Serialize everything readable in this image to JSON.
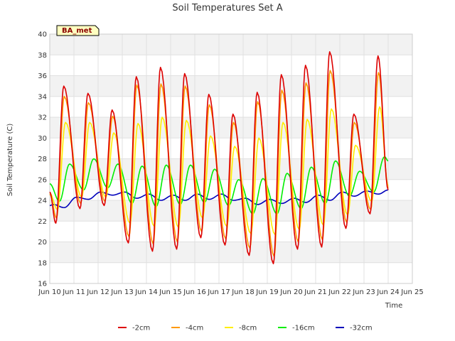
{
  "chart_data": {
    "type": "line",
    "title": "Soil Temperatures Set A",
    "xlabel": "Time",
    "ylabel": "Soil Temperature (C)",
    "badge": "BA_met",
    "xlim": [
      10,
      25
    ],
    "ylim": [
      16,
      40
    ],
    "x_ticks": [
      {
        "v": 10,
        "label": "Jun 10"
      },
      {
        "v": 11,
        "label": "Jun 11"
      },
      {
        "v": 12,
        "label": "Jun 12"
      },
      {
        "v": 13,
        "label": "Jun 13"
      },
      {
        "v": 14,
        "label": "Jun 14"
      },
      {
        "v": 15,
        "label": "Jun 15"
      },
      {
        "v": 16,
        "label": "Jun 16"
      },
      {
        "v": 17,
        "label": "Jun 17"
      },
      {
        "v": 18,
        "label": "Jun 18"
      },
      {
        "v": 19,
        "label": "Jun 19"
      },
      {
        "v": 20,
        "label": "Jun 20"
      },
      {
        "v": 21,
        "label": "Jun 21"
      },
      {
        "v": 22,
        "label": "Jun 22"
      },
      {
        "v": 23,
        "label": "Jun 23"
      },
      {
        "v": 24,
        "label": "Jun 24"
      },
      {
        "v": 25,
        "label": "Jun 25"
      }
    ],
    "y_ticks": [
      16,
      18,
      20,
      22,
      24,
      26,
      28,
      30,
      32,
      34,
      36,
      38,
      40
    ],
    "legend_position": "bottom",
    "series": [
      {
        "name": "-2cm",
        "color": "#dd0000",
        "points": [
          [
            10.0,
            24.8
          ],
          [
            10.25,
            21.8
          ],
          [
            10.58,
            35.0
          ],
          [
            11.25,
            23.2
          ],
          [
            11.58,
            34.3
          ],
          [
            12.25,
            23.5
          ],
          [
            12.58,
            32.7
          ],
          [
            13.25,
            19.9
          ],
          [
            13.58,
            35.9
          ],
          [
            14.25,
            19.1
          ],
          [
            14.58,
            36.8
          ],
          [
            15.25,
            19.3
          ],
          [
            15.58,
            36.2
          ],
          [
            16.25,
            20.4
          ],
          [
            16.58,
            34.2
          ],
          [
            17.25,
            19.7
          ],
          [
            17.58,
            32.3
          ],
          [
            18.25,
            18.7
          ],
          [
            18.58,
            34.4
          ],
          [
            19.25,
            17.9
          ],
          [
            19.58,
            36.1
          ],
          [
            20.25,
            19.3
          ],
          [
            20.58,
            37.0
          ],
          [
            21.25,
            19.5
          ],
          [
            21.58,
            38.3
          ],
          [
            22.25,
            21.3
          ],
          [
            22.58,
            32.3
          ],
          [
            23.25,
            22.7
          ],
          [
            23.58,
            37.9
          ],
          [
            24.0,
            25.0
          ]
        ]
      },
      {
        "name": "-4cm",
        "color": "#ff9900",
        "points": [
          [
            10.0,
            24.6
          ],
          [
            10.28,
            22.3
          ],
          [
            10.6,
            34.0
          ],
          [
            11.28,
            23.7
          ],
          [
            11.6,
            33.4
          ],
          [
            12.28,
            23.9
          ],
          [
            12.6,
            32.1
          ],
          [
            13.28,
            20.5
          ],
          [
            13.6,
            35.1
          ],
          [
            14.28,
            19.8
          ],
          [
            14.6,
            35.2
          ],
          [
            15.28,
            20.0
          ],
          [
            15.6,
            35.0
          ],
          [
            16.28,
            21.0
          ],
          [
            16.6,
            33.2
          ],
          [
            17.28,
            20.3
          ],
          [
            17.6,
            31.5
          ],
          [
            18.28,
            19.4
          ],
          [
            18.6,
            33.5
          ],
          [
            19.28,
            18.6
          ],
          [
            19.6,
            34.6
          ],
          [
            20.28,
            20.0
          ],
          [
            20.6,
            35.3
          ],
          [
            21.28,
            20.2
          ],
          [
            21.6,
            36.5
          ],
          [
            22.28,
            21.9
          ],
          [
            22.6,
            31.5
          ],
          [
            23.28,
            23.1
          ],
          [
            23.6,
            36.3
          ],
          [
            24.0,
            25.2
          ]
        ]
      },
      {
        "name": "-8cm",
        "color": "#ffee00",
        "points": [
          [
            10.0,
            24.7
          ],
          [
            10.32,
            23.1
          ],
          [
            10.65,
            31.5
          ],
          [
            11.32,
            24.3
          ],
          [
            11.65,
            31.5
          ],
          [
            12.32,
            24.3
          ],
          [
            12.65,
            30.5
          ],
          [
            13.32,
            21.8
          ],
          [
            13.65,
            31.4
          ],
          [
            14.32,
            21.5
          ],
          [
            14.65,
            32.0
          ],
          [
            15.32,
            21.4
          ],
          [
            15.65,
            31.7
          ],
          [
            16.32,
            22.3
          ],
          [
            16.65,
            30.2
          ],
          [
            17.32,
            21.5
          ],
          [
            17.65,
            29.2
          ],
          [
            18.32,
            20.8
          ],
          [
            18.65,
            30.0
          ],
          [
            19.32,
            20.7
          ],
          [
            19.65,
            31.5
          ],
          [
            20.32,
            21.2
          ],
          [
            20.65,
            31.8
          ],
          [
            21.32,
            21.6
          ],
          [
            21.65,
            32.8
          ],
          [
            22.32,
            22.6
          ],
          [
            22.65,
            29.3
          ],
          [
            23.32,
            23.9
          ],
          [
            23.65,
            33.0
          ],
          [
            24.0,
            25.4
          ]
        ]
      },
      {
        "name": "-16cm",
        "color": "#00ee00",
        "points": [
          [
            10.0,
            25.6
          ],
          [
            10.4,
            23.9
          ],
          [
            10.82,
            27.5
          ],
          [
            11.4,
            25.0
          ],
          [
            11.82,
            28.0
          ],
          [
            12.4,
            25.2
          ],
          [
            12.82,
            27.5
          ],
          [
            13.4,
            23.7
          ],
          [
            13.82,
            27.3
          ],
          [
            14.4,
            23.4
          ],
          [
            14.82,
            27.4
          ],
          [
            15.4,
            23.6
          ],
          [
            15.82,
            27.4
          ],
          [
            16.4,
            23.8
          ],
          [
            16.82,
            27.0
          ],
          [
            17.4,
            23.5
          ],
          [
            17.82,
            26.0
          ],
          [
            18.4,
            22.7
          ],
          [
            18.82,
            26.1
          ],
          [
            19.4,
            22.7
          ],
          [
            19.82,
            26.6
          ],
          [
            20.4,
            23.2
          ],
          [
            20.82,
            27.2
          ],
          [
            21.4,
            23.7
          ],
          [
            21.82,
            27.8
          ],
          [
            22.4,
            24.4
          ],
          [
            22.82,
            26.8
          ],
          [
            23.4,
            24.8
          ],
          [
            23.85,
            28.2
          ],
          [
            24.0,
            27.8
          ]
        ]
      },
      {
        "name": "-32cm",
        "color": "#0000bb",
        "points": [
          [
            10.0,
            23.5
          ],
          [
            10.15,
            23.6
          ],
          [
            10.6,
            23.3
          ],
          [
            11.1,
            24.3
          ],
          [
            11.6,
            24.1
          ],
          [
            12.1,
            24.8
          ],
          [
            12.6,
            24.5
          ],
          [
            13.1,
            24.8
          ],
          [
            13.6,
            24.2
          ],
          [
            14.1,
            24.6
          ],
          [
            14.6,
            24.0
          ],
          [
            15.1,
            24.5
          ],
          [
            15.6,
            24.0
          ],
          [
            16.1,
            24.6
          ],
          [
            16.6,
            24.1
          ],
          [
            17.1,
            24.6
          ],
          [
            17.6,
            24.0
          ],
          [
            18.1,
            24.2
          ],
          [
            18.6,
            23.6
          ],
          [
            19.1,
            24.1
          ],
          [
            19.6,
            23.7
          ],
          [
            20.1,
            24.2
          ],
          [
            20.6,
            23.8
          ],
          [
            21.1,
            24.5
          ],
          [
            21.6,
            24.0
          ],
          [
            22.1,
            24.8
          ],
          [
            22.6,
            24.4
          ],
          [
            23.1,
            24.9
          ],
          [
            23.6,
            24.6
          ],
          [
            24.0,
            25.0
          ]
        ]
      }
    ]
  }
}
